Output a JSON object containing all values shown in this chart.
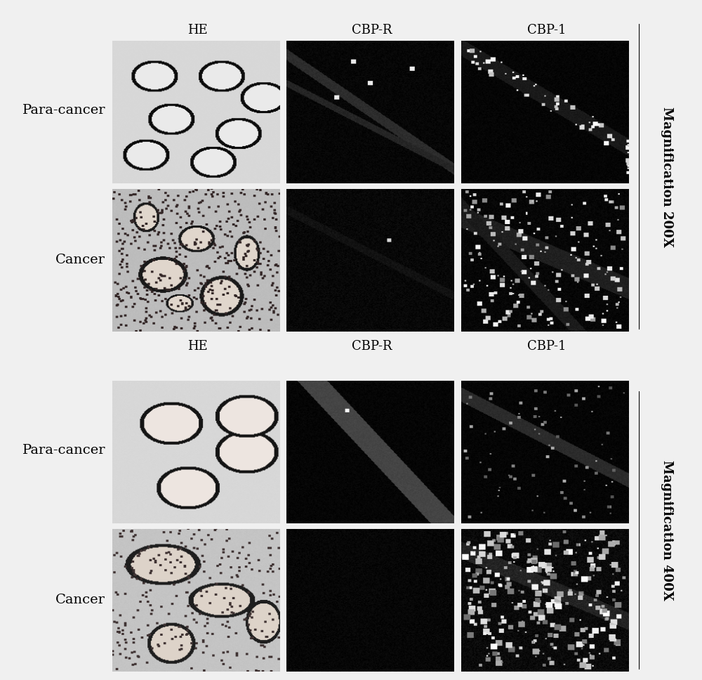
{
  "background_color": "#f0f0f0",
  "panel_bg": "#ffffff",
  "col_headers": [
    "HE",
    "CBP-R",
    "CBP-1"
  ],
  "row_labels_top": [
    "Para-cancer",
    "Cancer"
  ],
  "row_labels_bottom": [
    "Para-cancer",
    "Cancer"
  ],
  "magnification_top": "Magnification 200X",
  "magnification_bottom": "Magnification 400X",
  "label_fontsize": 14,
  "header_fontsize": 13,
  "mag_fontsize": 13,
  "fig_width": 10.0,
  "fig_height": 9.68,
  "dpi": 100
}
